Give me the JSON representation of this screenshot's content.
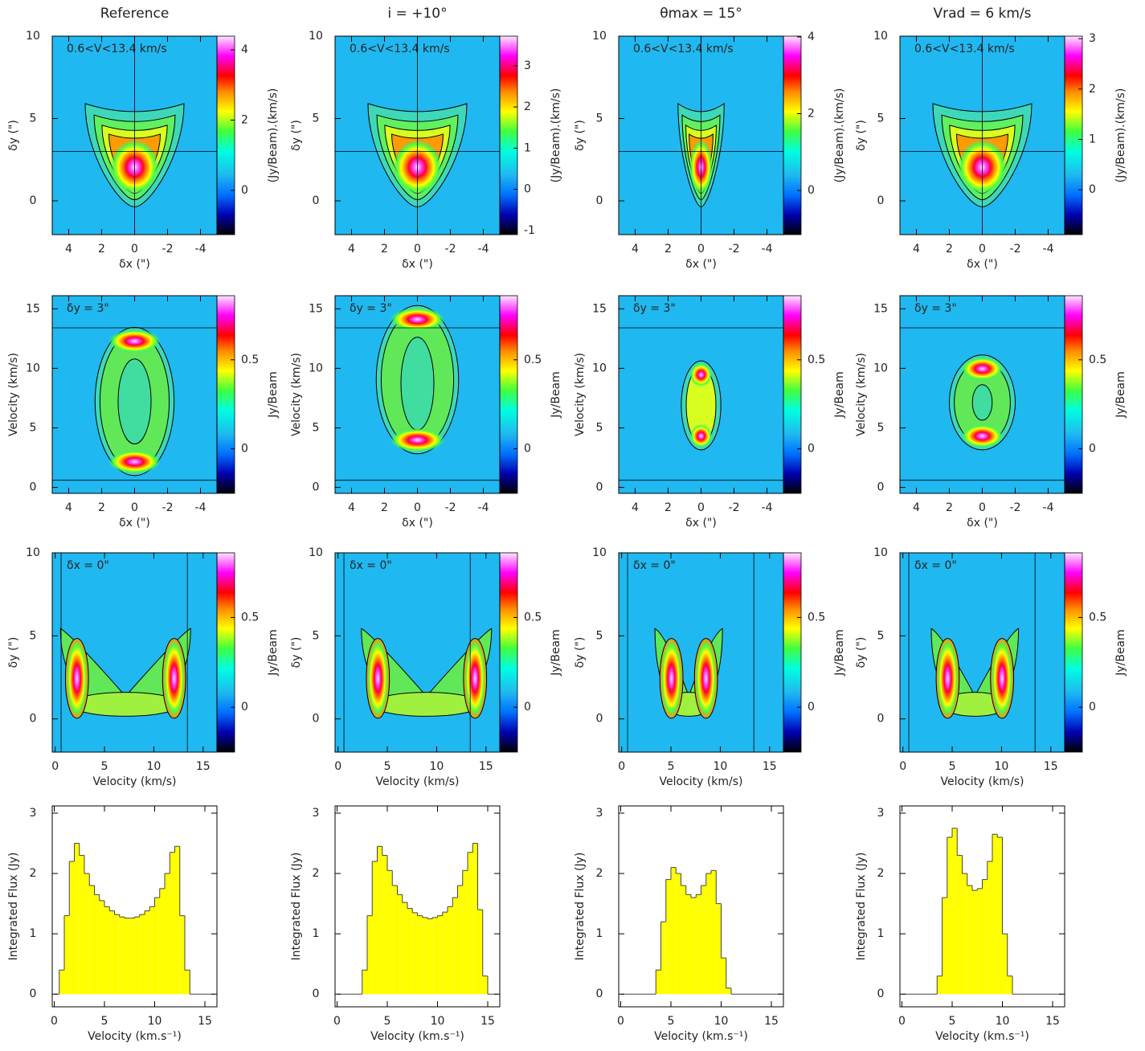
{
  "chart_data": [
    {
      "type": "image",
      "title": "Reference",
      "annotation": "0.6<V<13.4 km/s",
      "xlabel": "δx (\")",
      "ylabel": "δy (\")",
      "xlim": [
        5,
        -5
      ],
      "xticks": [
        4,
        2,
        0,
        -2,
        -4
      ],
      "ylim": [
        -2.05,
        10
      ],
      "yticks": [
        0,
        5,
        10
      ],
      "guides": {
        "x": [
          0
        ],
        "y": [
          3
        ]
      },
      "colorbar": {
        "label": "(Jy/Beam).(km/s)",
        "lim": [
          -1.26,
          4.39
        ],
        "ticks": [
          0,
          2,
          4
        ]
      }
    },
    {
      "type": "image",
      "title": "i = +10°",
      "annotation": "0.6<V<13.4 km/s",
      "xlabel": "δx (\")",
      "ylabel": "δy (\")",
      "xlim": [
        5,
        -5
      ],
      "xticks": [
        4,
        2,
        0,
        -2,
        -4
      ],
      "ylim": [
        -2.05,
        10
      ],
      "yticks": [
        0,
        5,
        10
      ],
      "guides": {
        "x": [
          0
        ],
        "y": [
          3
        ]
      },
      "colorbar": {
        "label": "(Jy/Beam).(km/s)",
        "lim": [
          -1.1,
          3.72
        ],
        "ticks": [
          -1,
          0,
          1,
          2,
          3
        ]
      }
    },
    {
      "type": "image",
      "title": "θmax = 15°",
      "annotation": "0.6<V<13.4 km/s",
      "xlabel": "δx (\")",
      "ylabel": "δy (\")",
      "xlim": [
        5,
        -5
      ],
      "xticks": [
        4,
        2,
        0,
        -2,
        -4
      ],
      "ylim": [
        -2.05,
        10
      ],
      "yticks": [
        0,
        5,
        10
      ],
      "guides": {
        "x": [
          0
        ],
        "y": [
          3
        ]
      },
      "colorbar": {
        "label": "(Jy/Beam).(km/s)",
        "lim": [
          -1.15,
          4.02
        ],
        "ticks": [
          0,
          2,
          4
        ]
      }
    },
    {
      "type": "image",
      "title": "Vrad = 6 km/s",
      "annotation": "0.6<V<13.4 km/s",
      "xlabel": "δx (\")",
      "ylabel": "δy (\")",
      "xlim": [
        5,
        -5
      ],
      "xticks": [
        4,
        2,
        0,
        -2,
        -4
      ],
      "ylim": [
        -2.05,
        10
      ],
      "yticks": [
        0,
        5,
        10
      ],
      "guides": {
        "x": [
          0
        ],
        "y": [
          3
        ]
      },
      "colorbar": {
        "label": "(Jy/Beam).(km/s)",
        "lim": [
          -0.89,
          3.05
        ],
        "ticks": [
          0,
          1,
          2,
          3
        ]
      }
    },
    {
      "type": "image",
      "annotation": "δy = 3\"",
      "xlabel": "δx (\")",
      "ylabel": "Velocity (km/s)",
      "xlim": [
        5,
        -5
      ],
      "xticks": [
        4,
        2,
        0,
        -2,
        -4
      ],
      "ylim": [
        -0.5,
        16.1
      ],
      "yticks": [
        0,
        5,
        10,
        15
      ],
      "guides": {
        "x": [],
        "y": [
          0.6,
          13.4
        ]
      },
      "colorbar": {
        "label": "Jy/Beam",
        "lim": [
          -0.25,
          0.86
        ],
        "ticks": [
          0,
          0.5
        ]
      }
    },
    {
      "type": "image",
      "annotation": "δy = 3\"",
      "xlabel": "δx (\")",
      "ylabel": "Velocity (km/s)",
      "xlim": [
        5,
        -5
      ],
      "xticks": [
        4,
        2,
        0,
        -2,
        -4
      ],
      "ylim": [
        -0.5,
        16.1
      ],
      "yticks": [
        0,
        5,
        10,
        15
      ],
      "guides": {
        "x": [],
        "y": [
          0.6,
          13.4
        ]
      },
      "colorbar": {
        "label": "Jy/Beam",
        "lim": [
          -0.25,
          0.86
        ],
        "ticks": [
          0,
          0.5
        ]
      }
    },
    {
      "type": "image",
      "annotation": "δy = 3\"",
      "xlabel": "δx (\")",
      "ylabel": "Velocity (km/s)",
      "xlim": [
        5,
        -5
      ],
      "xticks": [
        4,
        2,
        0,
        -2,
        -4
      ],
      "ylim": [
        -0.5,
        16.1
      ],
      "yticks": [
        0,
        5,
        10,
        15
      ],
      "guides": {
        "x": [],
        "y": [
          0.6,
          13.4
        ]
      },
      "colorbar": {
        "label": "Jy/Beam",
        "lim": [
          -0.25,
          0.86
        ],
        "ticks": [
          0,
          0.5
        ]
      }
    },
    {
      "type": "image",
      "annotation": "δy = 3\"",
      "xlabel": "δx (\")",
      "ylabel": "Velocity (km/s)",
      "xlim": [
        5,
        -5
      ],
      "xticks": [
        4,
        2,
        0,
        -2,
        -4
      ],
      "ylim": [
        -0.5,
        16.1
      ],
      "yticks": [
        0,
        5,
        10,
        15
      ],
      "guides": {
        "x": [],
        "y": [
          0.6,
          13.4
        ]
      },
      "colorbar": {
        "label": "Jy/Beam",
        "lim": [
          -0.25,
          0.86
        ],
        "ticks": [
          0,
          0.5
        ]
      }
    },
    {
      "type": "image",
      "annotation": "δx = 0\"",
      "xlabel": "Velocity (km/s)",
      "ylabel": "δy (\")",
      "xlim": [
        -0.3,
        16.4
      ],
      "xticks": [
        0,
        5,
        10,
        15
      ],
      "ylim": [
        -2,
        10
      ],
      "yticks": [
        0,
        5,
        10
      ],
      "guides": {
        "x": [
          0.6,
          13.4
        ],
        "y": []
      },
      "colorbar": {
        "label": "Jy/Beam",
        "lim": [
          -0.25,
          0.86
        ],
        "ticks": [
          0,
          0.5
        ]
      }
    },
    {
      "type": "image",
      "annotation": "δx = 0\"",
      "xlabel": "Velocity (km/s)",
      "ylabel": "δy (\")",
      "xlim": [
        -0.3,
        16.4
      ],
      "xticks": [
        0,
        5,
        10,
        15
      ],
      "ylim": [
        -2,
        10
      ],
      "yticks": [
        0,
        5,
        10
      ],
      "guides": {
        "x": [
          0.6,
          13.4
        ],
        "y": []
      },
      "colorbar": {
        "label": "Jy/Beam",
        "lim": [
          -0.25,
          0.86
        ],
        "ticks": [
          0,
          0.5
        ]
      }
    },
    {
      "type": "image",
      "annotation": "δx = 0\"",
      "xlabel": "Velocity (km/s)",
      "ylabel": "δy (\")",
      "xlim": [
        -0.3,
        16.4
      ],
      "xticks": [
        0,
        5,
        10,
        15
      ],
      "ylim": [
        -2,
        10
      ],
      "yticks": [
        0,
        5,
        10
      ],
      "guides": {
        "x": [
          0.6,
          13.4
        ],
        "y": []
      },
      "colorbar": {
        "label": "Jy/Beam",
        "lim": [
          -0.25,
          0.86
        ],
        "ticks": [
          0,
          0.5
        ]
      }
    },
    {
      "type": "image",
      "annotation": "δx = 0\"",
      "xlabel": "Velocity (km/s)",
      "ylabel": "δy (\")",
      "xlim": [
        -0.3,
        16.4
      ],
      "xticks": [
        0,
        5,
        10,
        15
      ],
      "ylim": [
        -2,
        10
      ],
      "yticks": [
        0,
        5,
        10
      ],
      "guides": {
        "x": [
          0.6,
          13.4
        ],
        "y": []
      },
      "colorbar": {
        "label": "Jy/Beam",
        "lim": [
          -0.25,
          0.86
        ],
        "ticks": [
          0,
          0.5
        ]
      }
    },
    {
      "type": "histogram",
      "xlabel": "Velocity (km.s⁻¹)",
      "ylabel": "Integrated Flux (Jy)",
      "color": "#ffff00",
      "xlim": [
        -0.2,
        16.2
      ],
      "xticks": [
        0,
        5,
        10,
        15
      ],
      "ylim": [
        -0.21,
        3.12
      ],
      "yticks": [
        0,
        1,
        2,
        3
      ],
      "bins": [
        0,
        0.5,
        1,
        1.5,
        2,
        2.5,
        3,
        3.5,
        4,
        4.5,
        5,
        5.5,
        6,
        6.5,
        7,
        7.5,
        8,
        8.5,
        9,
        9.5,
        10,
        10.5,
        11,
        11.5,
        12,
        12.5,
        13,
        13.5,
        14,
        14.5,
        15,
        15.5,
        16
      ],
      "values": [
        0,
        0.4,
        1.3,
        2.2,
        2.5,
        2.3,
        2.0,
        1.8,
        1.65,
        1.55,
        1.45,
        1.38,
        1.32,
        1.28,
        1.26,
        1.26,
        1.28,
        1.32,
        1.38,
        1.45,
        1.6,
        1.75,
        2.0,
        2.35,
        2.45,
        1.3,
        0.4,
        0,
        0,
        0,
        0,
        0
      ]
    },
    {
      "type": "histogram",
      "xlabel": "Velocity (km.s⁻¹)",
      "ylabel": "Integrated Flux (Jy)",
      "color": "#ffff00",
      "xlim": [
        -0.2,
        16.2
      ],
      "xticks": [
        0,
        5,
        10,
        15
      ],
      "ylim": [
        -0.21,
        3.12
      ],
      "yticks": [
        0,
        1,
        2,
        3
      ],
      "bins": [
        0,
        0.5,
        1,
        1.5,
        2,
        2.5,
        3,
        3.5,
        4,
        4.5,
        5,
        5.5,
        6,
        6.5,
        7,
        7.5,
        8,
        8.5,
        9,
        9.5,
        10,
        10.5,
        11,
        11.5,
        12,
        12.5,
        13,
        13.5,
        14,
        14.5,
        15,
        15.5,
        16
      ],
      "values": [
        0,
        0,
        0,
        0,
        0,
        0.4,
        1.3,
        2.2,
        2.45,
        2.3,
        2.05,
        1.8,
        1.65,
        1.52,
        1.42,
        1.35,
        1.3,
        1.27,
        1.25,
        1.27,
        1.3,
        1.36,
        1.45,
        1.6,
        1.8,
        2.05,
        2.35,
        2.5,
        1.4,
        0.3,
        0,
        0
      ]
    },
    {
      "type": "histogram",
      "xlabel": "Velocity (km.s⁻¹)",
      "ylabel": "Integrated Flux (Jy)",
      "color": "#ffff00",
      "xlim": [
        -0.2,
        16.2
      ],
      "xticks": [
        0,
        5,
        10,
        15
      ],
      "ylim": [
        -0.21,
        3.12
      ],
      "yticks": [
        0,
        1,
        2,
        3
      ],
      "bins": [
        0,
        0.5,
        1,
        1.5,
        2,
        2.5,
        3,
        3.5,
        4,
        4.5,
        5,
        5.5,
        6,
        6.5,
        7,
        7.5,
        8,
        8.5,
        9,
        9.5,
        10,
        10.5,
        11,
        11.5,
        12,
        12.5,
        13,
        13.5,
        14,
        14.5,
        15,
        15.5,
        16
      ],
      "values": [
        0,
        0,
        0,
        0,
        0,
        0,
        0,
        0.4,
        1.2,
        1.9,
        2.1,
        2.0,
        1.8,
        1.65,
        1.6,
        1.65,
        1.8,
        2.0,
        2.05,
        1.5,
        0.6,
        0.1,
        0,
        0,
        0,
        0,
        0,
        0,
        0,
        0,
        0,
        0
      ]
    },
    {
      "type": "histogram",
      "xlabel": "Velocity (km.s⁻¹)",
      "ylabel": "Integrated Flux (Jy)",
      "color": "#ffff00",
      "xlim": [
        -0.2,
        16.2
      ],
      "xticks": [
        0,
        5,
        10,
        15
      ],
      "ylim": [
        -0.21,
        3.12
      ],
      "yticks": [
        0,
        1,
        2,
        3
      ],
      "bins": [
        0,
        0.5,
        1,
        1.5,
        2,
        2.5,
        3,
        3.5,
        4,
        4.5,
        5,
        5.5,
        6,
        6.5,
        7,
        7.5,
        8,
        8.5,
        9,
        9.5,
        10,
        10.5,
        11,
        11.5,
        12,
        12.5,
        13,
        13.5,
        14,
        14.5,
        15,
        15.5,
        16
      ],
      "values": [
        0,
        0,
        0,
        0,
        0,
        0,
        0,
        0.3,
        1.6,
        2.6,
        2.75,
        2.3,
        2.0,
        1.8,
        1.72,
        1.75,
        1.9,
        2.2,
        2.65,
        2.6,
        1.0,
        0.3,
        0,
        0,
        0,
        0,
        0,
        0,
        0,
        0,
        0,
        0
      ]
    }
  ]
}
